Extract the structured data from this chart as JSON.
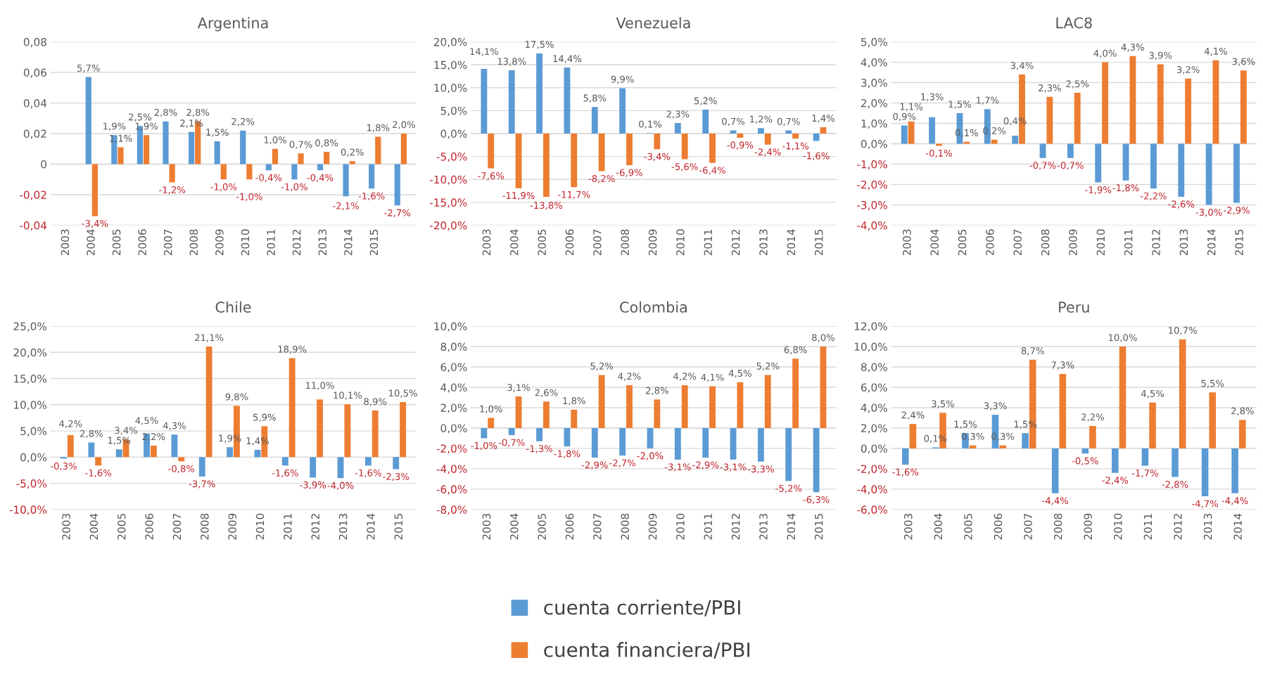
{
  "chart_data": [
    {
      "type": "bar",
      "title": "Argentina",
      "categories": [
        "2003",
        "2004",
        "2005",
        "2006",
        "2007",
        "2008",
        "2009",
        "2010",
        "2011",
        "2012",
        "2013",
        "2014",
        "2015",
        null
      ],
      "ylim": [
        -0.04,
        0.08
      ],
      "yticks": [
        {
          "value": -0.04,
          "label": "-0,04"
        },
        {
          "value": -0.02,
          "label": "-0,02"
        },
        {
          "value": 0,
          "label": "0"
        },
        {
          "value": 0.02,
          "label": "0,02"
        },
        {
          "value": 0.04,
          "label": "0,04"
        },
        {
          "value": 0.06,
          "label": "0,06"
        },
        {
          "value": 0.08,
          "label": "0,08"
        }
      ],
      "grid": "y",
      "legend": "bottom",
      "series": [
        {
          "name": "cuenta corriente/PBI",
          "color": "#5b9bd5",
          "values": [
            null,
            0.057,
            0.019,
            0.025,
            0.028,
            0.021,
            0.015,
            0.022,
            -0.004,
            -0.01,
            -0.004,
            -0.021,
            -0.016,
            -0.027
          ],
          "value_labels": [
            null,
            "5,7%",
            "1,9%",
            "2,5%",
            "2,8%",
            "2,1%",
            "1,5%",
            "2,2%",
            "-0,4%",
            "-1,0%",
            "-0,4%",
            "-2,1%",
            "-1,6%",
            "-2,7%"
          ]
        },
        {
          "name": "cuenta financiera/PBI",
          "color": "#ed7d31",
          "values": [
            null,
            -0.034,
            0.011,
            0.019,
            -0.012,
            0.028,
            -0.01,
            -0.01,
            0.01,
            0.007,
            0.008,
            0.002,
            0.018,
            0.02
          ],
          "value_labels": [
            null,
            "-3,4%",
            "1,1%",
            "1,9%",
            "-1,2%",
            "2,8%",
            "-1,0%",
            "-1,0%",
            "1,0%",
            "0,7%",
            "0,8%",
            "0,2%",
            "1,8%",
            "2,0%"
          ]
        }
      ]
    },
    {
      "type": "bar",
      "title": "Venezuela",
      "categories": [
        "2003",
        "2004",
        "2005",
        "2006",
        "2007",
        "2008",
        "2009",
        "2010",
        "2011",
        "2012",
        "2013",
        "2014",
        "2015"
      ],
      "ylim": [
        -20,
        20
      ],
      "yticks": [
        {
          "value": -20,
          "label": "-20,0%"
        },
        {
          "value": -15,
          "label": "-15,0%"
        },
        {
          "value": -10,
          "label": "-10,0%"
        },
        {
          "value": -5,
          "label": "-5,0%"
        },
        {
          "value": 0,
          "label": "0,0%"
        },
        {
          "value": 5,
          "label": "5,0%"
        },
        {
          "value": 10,
          "label": "10,0%"
        },
        {
          "value": 15,
          "label": "15,0%"
        },
        {
          "value": 20,
          "label": "20,0%"
        }
      ],
      "grid": "y",
      "legend": "bottom",
      "series": [
        {
          "name": "cuenta corriente/PBI",
          "color": "#5b9bd5",
          "values": [
            14.1,
            13.8,
            17.5,
            14.4,
            5.8,
            9.9,
            0.1,
            2.3,
            5.2,
            0.7,
            1.2,
            0.7,
            -1.6
          ],
          "value_labels": [
            "14,1%",
            "13,8%",
            "17,5%",
            "14,4%",
            "5,8%",
            "9,9%",
            "0,1%",
            "2,3%",
            "5,2%",
            "0,7%",
            "1,2%",
            "0,7%",
            "-1,6%"
          ]
        },
        {
          "name": "cuenta financiera/PBI",
          "color": "#ed7d31",
          "values": [
            -7.6,
            -11.9,
            -13.8,
            -11.7,
            -8.2,
            -6.9,
            -3.4,
            -5.6,
            -6.4,
            -0.9,
            -2.4,
            -1.1,
            1.4
          ],
          "value_labels": [
            "-7,6%",
            "-11,9%",
            "-13,8%",
            "-11,7%",
            "-8,2%",
            "-6,9%",
            "-3,4%",
            "-5,6%",
            "-6,4%",
            "-0,9%",
            "-2,4%",
            "-1,1%",
            "1,4%"
          ]
        }
      ]
    },
    {
      "type": "bar",
      "title": "LAC8",
      "categories": [
        "2003",
        "2004",
        "2005",
        "2006",
        "2007",
        "2008",
        "2009",
        "2010",
        "2011",
        "2012",
        "2013",
        "2014",
        "2015"
      ],
      "ylim": [
        -4,
        5
      ],
      "yticks": [
        {
          "value": -4,
          "label": "-4,0%"
        },
        {
          "value": -3,
          "label": "-3,0%"
        },
        {
          "value": -2,
          "label": "-2,0%"
        },
        {
          "value": -1,
          "label": "-1,0%"
        },
        {
          "value": 0,
          "label": "0,0%"
        },
        {
          "value": 1,
          "label": "1,0%"
        },
        {
          "value": 2,
          "label": "2,0%"
        },
        {
          "value": 3,
          "label": "3,0%"
        },
        {
          "value": 4,
          "label": "4,0%"
        },
        {
          "value": 5,
          "label": "5,0%"
        }
      ],
      "grid": "y",
      "legend": "bottom",
      "series": [
        {
          "name": "cuenta corriente/PBI",
          "color": "#5b9bd5",
          "values": [
            0.9,
            1.3,
            1.5,
            1.7,
            0.4,
            -0.7,
            -0.7,
            -1.9,
            -1.8,
            -2.2,
            -2.6,
            -3.0,
            -2.9
          ],
          "value_labels": [
            "0,9%",
            "1,3%",
            "1,5%",
            "1,7%",
            "0,4%",
            "-0,7%",
            "-0,7%",
            "-1,9%",
            "-1,8%",
            "-2,2%",
            "-2,6%",
            "-3,0%",
            "-2,9%"
          ]
        },
        {
          "name": "cuenta financiera/PBI",
          "color": "#ed7d31",
          "values": [
            1.1,
            -0.1,
            0.1,
            0.2,
            3.4,
            2.3,
            2.5,
            4.0,
            4.3,
            3.9,
            3.2,
            4.1,
            3.6
          ],
          "value_labels": [
            "1,1%",
            "-0,1%",
            "0,1%",
            "0,2%",
            "3,4%",
            "2,3%",
            "2,5%",
            "4,0%",
            "4,3%",
            "3,9%",
            "3,2%",
            "4,1%",
            "3,6%"
          ]
        }
      ]
    },
    {
      "type": "bar",
      "title": "Chile",
      "categories": [
        "2003",
        "2004",
        "2005",
        "2006",
        "2007",
        "2008",
        "2009",
        "2010",
        "2011",
        "2012",
        "2013",
        "2014",
        "2015"
      ],
      "ylim": [
        -10,
        25
      ],
      "yticks": [
        {
          "value": -10,
          "label": "-10,0%"
        },
        {
          "value": -5,
          "label": "-5,0%"
        },
        {
          "value": 0,
          "label": "0,0%"
        },
        {
          "value": 5,
          "label": "5,0%"
        },
        {
          "value": 10,
          "label": "10,0%"
        },
        {
          "value": 15,
          "label": "15,0%"
        },
        {
          "value": 20,
          "label": "20,0%"
        },
        {
          "value": 25,
          "label": "25,0%"
        }
      ],
      "grid": "y",
      "legend": "bottom",
      "series": [
        {
          "name": "cuenta corriente/PBI",
          "color": "#5b9bd5",
          "values": [
            -0.3,
            2.8,
            1.5,
            4.5,
            4.3,
            -3.7,
            1.9,
            1.4,
            -1.6,
            -3.9,
            -4.0,
            -1.6,
            -2.3
          ],
          "value_labels": [
            "-0,3%",
            "2,8%",
            "1,5%",
            "4,5%",
            "4,3%",
            "-3,7%",
            "1,9%",
            "1,4%",
            "-1,6%",
            "-3,9%",
            "-4,0%",
            "-1,6%",
            "-2,3%"
          ]
        },
        {
          "name": "cuenta financiera/PBI",
          "color": "#ed7d31",
          "values": [
            4.2,
            -1.6,
            3.4,
            2.2,
            -0.8,
            21.1,
            9.8,
            5.9,
            18.9,
            11.0,
            10.1,
            8.9,
            10.5
          ],
          "value_labels": [
            "4,2%",
            "-1,6%",
            "3,4%",
            "2,2%",
            "-0,8%",
            "21,1%",
            "9,8%",
            "5,9%",
            "18,9%",
            "11,0%",
            "10,1%",
            "8,9%",
            "10,5%"
          ]
        }
      ]
    },
    {
      "type": "bar",
      "title": "Colombia",
      "categories": [
        "2003",
        "2004",
        "2005",
        "2006",
        "2007",
        "2008",
        "2009",
        "2010",
        "2011",
        "2012",
        "2013",
        "2014",
        "2015"
      ],
      "ylim": [
        -8,
        10
      ],
      "yticks": [
        {
          "value": -8,
          "label": "-8,0%"
        },
        {
          "value": -6,
          "label": "-6,0%"
        },
        {
          "value": -4,
          "label": "-4,0%"
        },
        {
          "value": -2,
          "label": "-2,0%"
        },
        {
          "value": 0,
          "label": "0,0%"
        },
        {
          "value": 2,
          "label": "2,0%"
        },
        {
          "value": 4,
          "label": "4,0%"
        },
        {
          "value": 6,
          "label": "6,0%"
        },
        {
          "value": 8,
          "label": "8,0%"
        },
        {
          "value": 10,
          "label": "10,0%"
        }
      ],
      "grid": "y",
      "legend": "bottom",
      "series": [
        {
          "name": "cuenta corriente/PBI",
          "color": "#5b9bd5",
          "values": [
            -1.0,
            -0.7,
            -1.3,
            -1.8,
            -2.9,
            -2.7,
            -2.0,
            -3.1,
            -2.9,
            -3.1,
            -3.3,
            -5.2,
            -6.3
          ],
          "value_labels": [
            "-1,0%",
            "-0,7%",
            "-1,3%",
            "-1,8%",
            "-2,9%",
            "-2,7%",
            "-2,0%",
            "-3,1%",
            "-2,9%",
            "-3,1%",
            "-3,3%",
            "-5,2%",
            "-6,3%"
          ]
        },
        {
          "name": "cuenta financiera/PBI",
          "color": "#ed7d31",
          "values": [
            1.0,
            3.1,
            2.6,
            1.8,
            5.2,
            4.2,
            2.8,
            4.2,
            4.1,
            4.5,
            5.2,
            6.8,
            8.0
          ],
          "value_labels": [
            "1,0%",
            "3,1%",
            "2,6%",
            "1,8%",
            "5,2%",
            "4,2%",
            "2,8%",
            "4,2%",
            "4,1%",
            "4,5%",
            "5,2%",
            "6,8%",
            "8,0%"
          ]
        }
      ]
    },
    {
      "type": "bar",
      "title": "Peru",
      "categories": [
        "2003",
        "2004",
        "2005",
        "2006",
        "2007",
        "2008",
        "2009",
        "2010",
        "2011",
        "2012",
        "2013",
        "2014"
      ],
      "ylim": [
        -6,
        12
      ],
      "yticks": [
        {
          "value": -6,
          "label": "-6,0%"
        },
        {
          "value": -4,
          "label": "-4,0%"
        },
        {
          "value": -2,
          "label": "-2,0%"
        },
        {
          "value": 0,
          "label": "0,0%"
        },
        {
          "value": 2,
          "label": "2,0%"
        },
        {
          "value": 4,
          "label": "4,0%"
        },
        {
          "value": 6,
          "label": "6,0%"
        },
        {
          "value": 8,
          "label": "8,0%"
        },
        {
          "value": 10,
          "label": "10,0%"
        },
        {
          "value": 12,
          "label": "12,0%"
        }
      ],
      "grid": "y",
      "legend": "bottom",
      "series": [
        {
          "name": "cuenta corriente/PBI",
          "color": "#5b9bd5",
          "values": [
            -1.6,
            0.1,
            1.5,
            3.3,
            1.5,
            -4.4,
            -0.5,
            -2.4,
            -1.7,
            -2.8,
            -4.7,
            -4.4
          ],
          "value_labels": [
            "-1,6%",
            "0,1%",
            "1,5%",
            "3,3%",
            "1,5%",
            "-4,4%",
            "-0,5%",
            "-2,4%",
            "-1,7%",
            "-2,8%",
            "-4,7%",
            "-4,4%"
          ]
        },
        {
          "name": "cuenta financiera/PBI",
          "color": "#ed7d31",
          "values": [
            2.4,
            3.5,
            0.3,
            0.3,
            8.7,
            7.3,
            2.2,
            10.0,
            4.5,
            10.7,
            5.5,
            2.8
          ],
          "value_labels": [
            "2,4%",
            "3,5%",
            "0,3%",
            "0,3%",
            "8,7%",
            "7,3%",
            "2,2%",
            "10,0%",
            "4,5%",
            "10,7%",
            "5,5%",
            "2,8%"
          ]
        }
      ]
    }
  ]
}
